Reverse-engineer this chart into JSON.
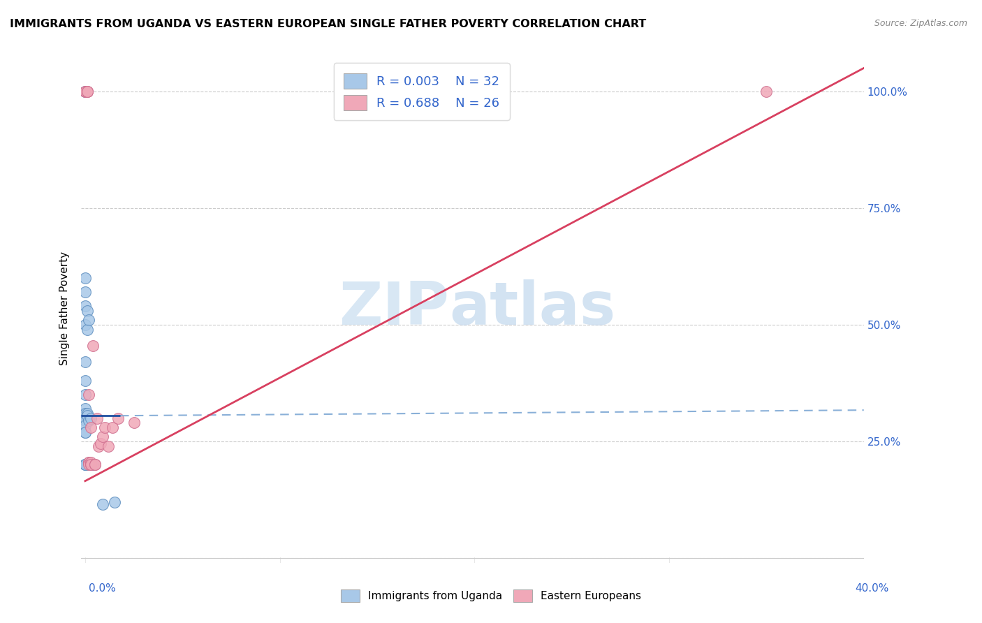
{
  "title": "IMMIGRANTS FROM UGANDA VS EASTERN EUROPEAN SINGLE FATHER POVERTY CORRELATION CHART",
  "source": "Source: ZipAtlas.com",
  "ylabel": "Single Father Poverty",
  "ytick_vals": [
    0.0,
    0.25,
    0.5,
    0.75,
    1.0
  ],
  "ytick_labels": [
    "",
    "25.0%",
    "50.0%",
    "75.0%",
    "100.0%"
  ],
  "xlim": [
    -0.002,
    0.4
  ],
  "ylim": [
    -0.01,
    1.08
  ],
  "legend_r1": "R = 0.003",
  "legend_n1": "N = 32",
  "legend_r2": "R = 0.688",
  "legend_n2": "N = 26",
  "color_blue": "#a8c8e8",
  "color_pink": "#f0a8b8",
  "trendline_blue_solid_color": "#2050a0",
  "trendline_blue_dashed_color": "#8ab0d8",
  "trendline_pink_color": "#d84060",
  "watermark_zip": "ZIP",
  "watermark_atlas": "atlas",
  "uganda_x": [
    0.0,
    0.0,
    0.0,
    0.0,
    0.0,
    0.0,
    0.0,
    0.0,
    0.0,
    0.0,
    0.0,
    0.0,
    0.0,
    0.0,
    0.0,
    0.0,
    0.0,
    0.0,
    0.001,
    0.001,
    0.001,
    0.001,
    0.001,
    0.002,
    0.002,
    0.003,
    0.003,
    0.004,
    0.004,
    0.009,
    0.015,
    0.0
  ],
  "uganda_y": [
    1.0,
    1.0,
    0.6,
    0.57,
    0.54,
    0.5,
    0.42,
    0.38,
    0.35,
    0.32,
    0.31,
    0.3,
    0.295,
    0.285,
    0.27,
    0.27,
    0.2,
    0.2,
    0.53,
    0.49,
    0.31,
    0.305,
    0.2,
    0.295,
    0.51,
    0.3,
    0.2,
    0.2,
    0.2,
    0.115,
    0.12,
    0.2
  ],
  "eastern_x": [
    0.0,
    0.0,
    0.001,
    0.001,
    0.001,
    0.002,
    0.002,
    0.002,
    0.003,
    0.003,
    0.003,
    0.004,
    0.005,
    0.005,
    0.006,
    0.007,
    0.008,
    0.009,
    0.01,
    0.012,
    0.014,
    0.017,
    0.025,
    0.35,
    0.002,
    0.003
  ],
  "eastern_y": [
    1.0,
    1.0,
    1.0,
    1.0,
    1.0,
    0.205,
    0.205,
    0.2,
    0.2,
    0.205,
    0.2,
    0.455,
    0.2,
    0.2,
    0.3,
    0.24,
    0.245,
    0.26,
    0.28,
    0.24,
    0.28,
    0.3,
    0.29,
    1.0,
    0.35,
    0.28
  ],
  "blue_trendline_x0": -0.002,
  "blue_trendline_x_switch": 0.018,
  "blue_trendline_x1": 0.4,
  "blue_trendline_y": 0.305,
  "pink_trendline_x0": 0.0,
  "pink_trendline_y0": 0.165,
  "pink_trendline_x1": 0.4,
  "pink_trendline_y1": 1.05
}
